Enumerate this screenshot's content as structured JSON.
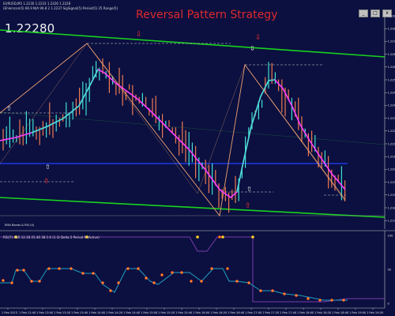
{
  "window": {
    "symbol_header": "EURUSD,M5 1.2230 1.2233 1.2226 1.2228",
    "indicator_header": "(Ehlerscom5) 66.9 N/A 90.8 2 1.2237 SigSignal(5) Period(5) 25 Range(5)",
    "buttons": [
      "_",
      "□",
      "x"
    ]
  },
  "price_display": "1.22280",
  "strategy_title": "Reversal Pattern Strategy",
  "bottom_note": "EMA Bands & RSI (4)",
  "indicator_panel": {
    "header": "RSI(7) ASR 12.18 25.46 38.1.6 (1.3) Delta 2 Period 9 (Active)"
  },
  "price_axis": [
    "1.2289",
    "1.2282",
    "1.2275",
    "1.2268",
    "1.2261",
    "1.2254",
    "1.2247",
    "1.2240",
    "1.2233",
    "1.2226",
    "1.2219",
    "1.2212",
    "1.2205",
    "1.2198",
    "1.2191",
    "1.2184",
    "1.2177"
  ],
  "time_axis": [
    "1 Feb 2013",
    "1 Feb 12:40",
    "1 Feb 13:00",
    "1 Feb 13:20",
    "1 Feb 13:40",
    "1 Feb 14:00",
    "1 Feb 14:20",
    "1 Feb 14:40",
    "1 Feb 15:00",
    "1 Feb 15:20",
    "1 Feb 15:40",
    "1 Feb 16:00",
    "1 Feb 16:20",
    "1 Feb 16:40",
    "1 Feb 17:00",
    "1 Feb 17:20",
    "1 Feb 17:40",
    "1 Feb 18:00",
    "1 Feb 18:20",
    "1 Feb 18:40",
    "1 Feb 19:00",
    "1 Feb 19:20"
  ],
  "indicator_axis": [
    "100",
    "50",
    "0"
  ],
  "colors": {
    "background": "#0b1040",
    "channel": "#18d21e",
    "zigzag": "#f0a070",
    "ma_up": "#40e0d0",
    "ma_down": "#ff40ff",
    "support_line": "#2040ff",
    "title": "#e0282d",
    "bull_candle": "#40e0d0",
    "bear_candle": "#f07850"
  },
  "icons": [
    "up-arrow-icon",
    "down-arrow-icon",
    "window-minimize-icon",
    "window-maximize-icon",
    "window-close-icon"
  ]
}
